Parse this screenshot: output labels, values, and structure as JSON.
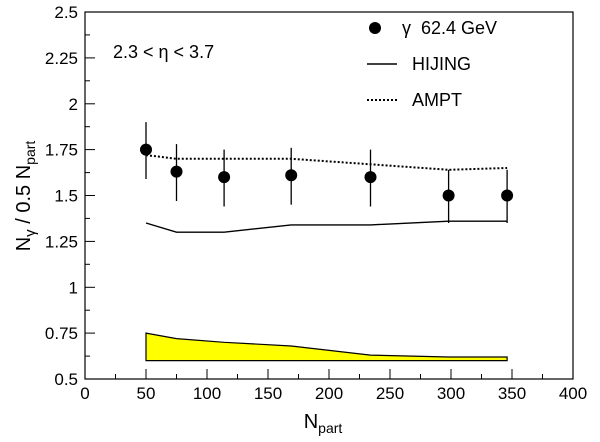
{
  "chart_data": {
    "type": "scatter",
    "xlabel_main": "N",
    "xlabel_sub": "part",
    "ylabel_parts": [
      "N",
      "γ",
      " / 0.5 N",
      "part"
    ],
    "xlim": [
      0,
      400
    ],
    "ylim": [
      0.5,
      2.5
    ],
    "x_ticks": [
      0,
      50,
      100,
      150,
      200,
      250,
      300,
      350,
      400
    ],
    "y_ticks": [
      0.5,
      0.75,
      1,
      1.25,
      1.5,
      1.75,
      2,
      2.25,
      2.5
    ],
    "x_tick_labels": [
      "0",
      "50",
      "100",
      "150",
      "200",
      "250",
      "300",
      "350",
      "400"
    ],
    "y_tick_labels": [
      "0.5",
      "0.75",
      "1",
      "1.25",
      "1.5",
      "1.75",
      "2",
      "2.25",
      "2.5"
    ],
    "grid": false,
    "annotation": "2.3 < η < 3.7",
    "legend_position": "top-right",
    "series": [
      {
        "name": "γ  62.4 GeV",
        "kind": "points",
        "x": [
          50,
          75,
          114,
          169,
          234,
          298,
          346
        ],
        "y": [
          1.75,
          1.63,
          1.6,
          1.61,
          1.6,
          1.5,
          1.5
        ],
        "err_low": [
          0.16,
          0.16,
          0.16,
          0.16,
          0.16,
          0.15,
          0.15
        ],
        "err_high": [
          0.15,
          0.15,
          0.15,
          0.15,
          0.15,
          0.14,
          0.14
        ]
      },
      {
        "name": "HIJING",
        "kind": "solid-line",
        "x": [
          50,
          75,
          114,
          169,
          234,
          298,
          346
        ],
        "y": [
          1.35,
          1.3,
          1.3,
          1.34,
          1.34,
          1.36,
          1.36
        ]
      },
      {
        "name": "AMPT",
        "kind": "dotted-line",
        "x": [
          50,
          75,
          114,
          169,
          234,
          298,
          346
        ],
        "y": [
          1.72,
          1.7,
          1.7,
          1.7,
          1.67,
          1.64,
          1.65
        ]
      }
    ],
    "band": {
      "x": [
        50,
        75,
        114,
        169,
        234,
        298,
        346
      ],
      "upper": [
        0.75,
        0.72,
        0.7,
        0.68,
        0.63,
        0.62,
        0.62
      ],
      "lower": [
        0.6,
        0.6,
        0.6,
        0.6,
        0.6,
        0.6,
        0.6
      ],
      "fill": "#ffff00"
    }
  }
}
